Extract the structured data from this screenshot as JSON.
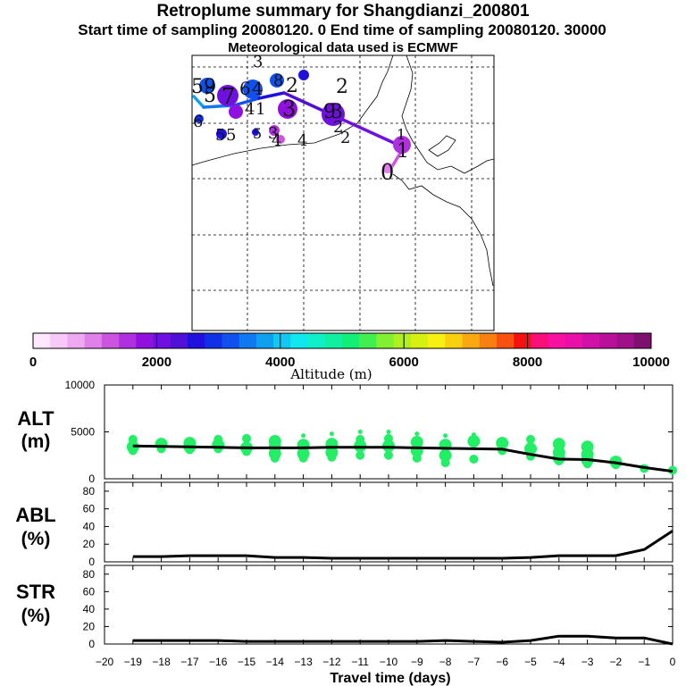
{
  "header": {
    "title": "Retroplume summary for Shangdianzi_200801",
    "sampling": "Start time of sampling 20080120.    0    End time of sampling 20080120. 30000",
    "met": "Meteorological data used is ECMWF"
  },
  "colorbar": {
    "label": "Altitude (m)",
    "tick_labels": [
      "0",
      "2000",
      "4000",
      "6000",
      "8000",
      "10000"
    ],
    "colors": [
      "#ffe8ff",
      "#f8c8f8",
      "#eeaaf0",
      "#e080ea",
      "#cc55e0",
      "#b030e0",
      "#9010e0",
      "#7010e0",
      "#5010d8",
      "#2010e0",
      "#1030e8",
      "#1050f0",
      "#1078f0",
      "#10a0f0",
      "#10c8f0",
      "#10e8f0",
      "#10f0c8",
      "#10f0a0",
      "#10f078",
      "#40f050",
      "#80f030",
      "#b0f020",
      "#d8f010",
      "#f8f010",
      "#f8d010",
      "#f8a810",
      "#f88010",
      "#f85010",
      "#f81010",
      "#f81078",
      "#f810a0",
      "#e810a8",
      "#d010a8",
      "#b81098",
      "#a01088",
      "#801070"
    ]
  },
  "map": {
    "labels": [
      {
        "t": "5"
      },
      {
        "t": "9"
      },
      {
        "t": "7"
      },
      {
        "t": "6"
      },
      {
        "t": "4"
      },
      {
        "t": "3"
      },
      {
        "t": "8"
      },
      {
        "t": "2"
      },
      {
        "t": "1"
      },
      {
        "t": "3"
      },
      {
        "t": "2"
      },
      {
        "t": "3"
      },
      {
        "t": "9"
      },
      {
        "t": "2"
      },
      {
        "t": "1"
      },
      {
        "t": "0"
      },
      {
        "t": "6"
      },
      {
        "t": "5"
      },
      {
        "t": "4"
      },
      {
        "t": "5"
      },
      {
        "t": "5"
      },
      {
        "t": "3"
      },
      {
        "t": "4"
      },
      {
        "t": "4"
      },
      {
        "t": "2"
      },
      {
        "t": "1"
      },
      {
        "t": "5"
      }
    ]
  },
  "chart_data": [
    {
      "type": "scatter+line",
      "panel": "ALT",
      "ylabel_line1": "ALT",
      "ylabel_line2": "(m)",
      "ylim": [
        0,
        10000
      ],
      "y_ticks": [
        "0",
        "5000",
        "10000"
      ],
      "x": [
        -19,
        -18,
        -17,
        -16,
        -15,
        -14,
        -13,
        -12,
        -11,
        -10,
        -9,
        -8,
        -7,
        -6,
        -5,
        -4,
        -3,
        -2,
        -1,
        0
      ],
      "line": [
        3500,
        3450,
        3400,
        3350,
        3300,
        3300,
        3300,
        3350,
        3350,
        3350,
        3300,
        3250,
        3200,
        3150,
        2600,
        2100,
        2050,
        1700,
        1200,
        800
      ],
      "clusters": [
        [
          4200,
          3400,
          3000
        ],
        [
          3700,
          3200
        ],
        [
          3800,
          3400,
          3100
        ],
        [
          4200,
          3600,
          3200
        ],
        [
          4300,
          3300,
          2900
        ],
        [
          4000,
          3400,
          2700,
          2200
        ],
        [
          4600,
          3600,
          2700,
          2200
        ],
        [
          4800,
          3700,
          2800,
          2300
        ],
        [
          5000,
          4200,
          3500,
          2500
        ],
        [
          5000,
          4300,
          3500,
          2500
        ],
        [
          4800,
          3900,
          3000,
          2200
        ],
        [
          4600,
          3600,
          2500,
          1700
        ],
        [
          4700,
          4000,
          2100
        ],
        [
          3800,
          3000
        ],
        [
          4200,
          3200,
          2400
        ],
        [
          3700,
          2800,
          2200,
          1900
        ],
        [
          3400,
          2600,
          2000,
          1600
        ],
        [
          1800,
          1500
        ],
        [
          1100
        ],
        [
          900
        ]
      ]
    },
    {
      "type": "line",
      "panel": "ABL",
      "ylabel_line1": "ABL",
      "ylabel_line2": "(%)",
      "ylim": [
        0,
        90
      ],
      "y_ticks": [
        "0",
        "20",
        "40",
        "60",
        "80"
      ],
      "x": [
        -19,
        -18,
        -17,
        -16,
        -15,
        -14,
        -13,
        -12,
        -11,
        -10,
        -9,
        -8,
        -7,
        -6,
        -5,
        -4,
        -3,
        -2,
        -1,
        0
      ],
      "values": [
        6,
        6,
        7,
        7,
        7,
        5,
        5,
        4,
        4,
        4,
        4,
        4,
        4,
        4,
        5,
        7,
        7,
        7,
        14,
        35
      ]
    },
    {
      "type": "line",
      "panel": "STR",
      "ylabel_line1": "STR",
      "ylabel_line2": "(%)",
      "ylim": [
        0,
        90
      ],
      "y_ticks": [
        "0",
        "20",
        "40",
        "60",
        "80"
      ],
      "x": [
        -19,
        -18,
        -17,
        -16,
        -15,
        -14,
        -13,
        -12,
        -11,
        -10,
        -9,
        -8,
        -7,
        -6,
        -5,
        -4,
        -3,
        -2,
        -1,
        0
      ],
      "values": [
        4,
        4,
        4,
        4,
        3,
        3,
        3,
        3,
        3,
        3,
        3,
        4,
        3,
        2,
        4,
        9,
        9,
        7,
        7,
        0
      ],
      "xlabel": "Travel time (days)",
      "xlim": [
        -20,
        0
      ],
      "x_tick_labels": [
        "−20",
        "−19",
        "−18",
        "−17",
        "−16",
        "−15",
        "−14",
        "−13",
        "−12",
        "−11",
        "−10",
        "−9",
        "−8",
        "−7",
        "−6",
        "−5",
        "−4",
        "−3",
        "−2",
        "−1",
        "0"
      ]
    }
  ]
}
